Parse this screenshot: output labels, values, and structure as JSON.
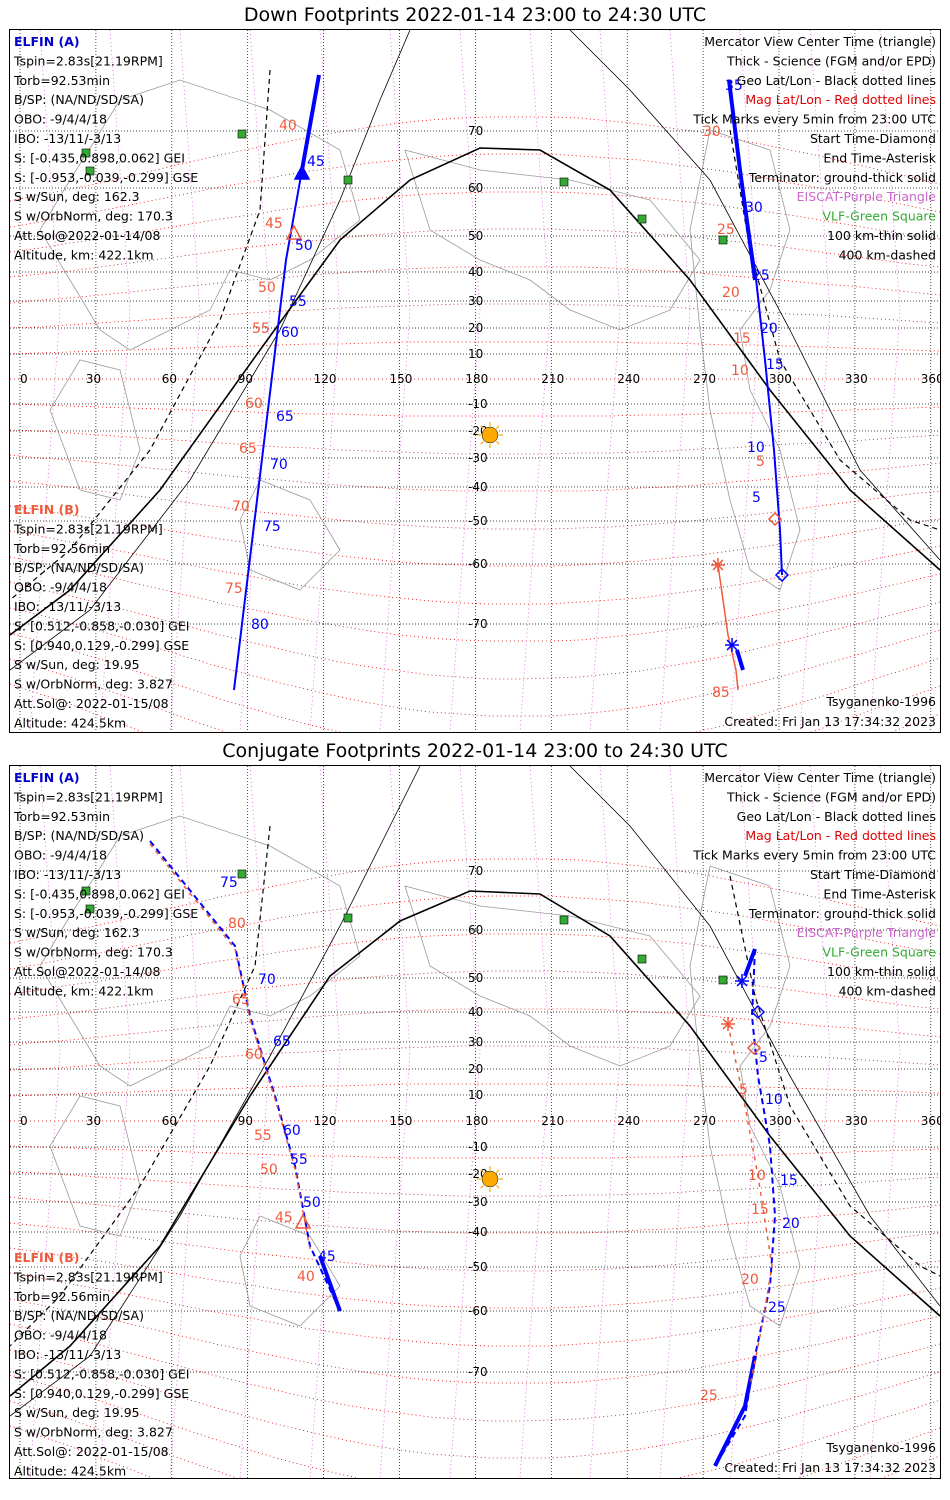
{
  "panels": [
    {
      "title": "Down Footprints 2022-01-14 23:00 to 24:30 UTC",
      "elfin_a": {
        "label": "ELFIN (A)",
        "lines": [
          "Tspin=2.83s[21.19RPM]",
          "Torb=92.53min",
          "B/SP: (NA/ND/SD/SA)",
          "OBO: -9/4/4/18",
          "IBO: -13/11/-3/13",
          "S: [-0.435,0.898,0.062] GEI",
          "S: [-0.953,-0.039,-0.299] GSE",
          "S w/Sun, deg: 162.3",
          "S w/OrbNorm, deg: 170.3",
          "Att.Sol@2022-01-14/08",
          "Altitude, km: 422.1km"
        ]
      },
      "elfin_b": {
        "label": "ELFIN (B)",
        "lines": [
          "Tspin=2.83s[21.19RPM]",
          "Torb=92.56min",
          "B/SP: (NA/ND/SD/SA)",
          "OBO: -9/4/4/18",
          "IBO: -13/11/-3/13",
          "S: [0.512,-0.858,-0.030] GEI",
          "S: [0.940,0.129,-0.299] GSE",
          "S w/Sun, deg: 19.95",
          "S w/OrbNorm, deg: 3.827",
          "Att.Sol@: 2022-01-15/08",
          "Altitude: 424.5km"
        ]
      },
      "legend": [
        {
          "text": "Mercator View Center Time (triangle)",
          "color": "#000000"
        },
        {
          "text": "Thick - Science (FGM and/or EPD)",
          "color": "#000000"
        },
        {
          "text": "Geo Lat/Lon - Black dotted lines",
          "color": "#000000"
        },
        {
          "text": "Mag Lat/Lon - Red dotted lines",
          "color": "#e00000"
        },
        {
          "text": "Tick Marks every 5min from 23:00 UTC",
          "color": "#000000"
        },
        {
          "text": "Start Time-Diamond",
          "color": "#000000"
        },
        {
          "text": "End Time-Asterisk",
          "color": "#000000"
        },
        {
          "text": "Terminator: ground-thick solid",
          "color": "#000000"
        },
        {
          "text": "EISCAT-Purple Triangle",
          "color": "#cc66cc"
        },
        {
          "text": "VLF-Green Square",
          "color": "#33aa33"
        },
        {
          "text": "100 km-thin solid",
          "color": "#000000"
        },
        {
          "text": "400 km-dashed",
          "color": "#000000"
        }
      ],
      "model": "Tsyganenko-1996",
      "created": "Created: Fri Jan 13 17:34:32 2023",
      "a_labels": [
        "35",
        "30",
        "25",
        "20",
        "15",
        "10",
        "5",
        "45",
        "50",
        "55",
        "60",
        "65",
        "70",
        "75",
        "80"
      ],
      "b_labels": [
        "30",
        "25",
        "20",
        "15",
        "10",
        "5",
        "40",
        "45",
        "50",
        "55",
        "60",
        "65",
        "70",
        "75",
        "85"
      ]
    },
    {
      "title": "Conjugate Footprints 2022-01-14 23:00 to 24:30 UTC",
      "elfin_a": {
        "label": "ELFIN (A)",
        "lines": [
          "Tspin=2.83s[21.19RPM]",
          "Torb=92.53min",
          "B/SP: (NA/ND/SD/SA)",
          "OBO: -9/4/4/18",
          "IBO: -13/11/-3/13",
          "S: [-0.435,0.898,0.062] GEI",
          "S: [-0.953,-0.039,-0.299] GSE",
          "S w/Sun, deg: 162.3",
          "S w/OrbNorm, deg: 170.3",
          "Att.Sol@2022-01-14/08",
          "Altitude, km: 422.1km"
        ]
      },
      "elfin_b": {
        "label": "ELFIN (B)",
        "lines": [
          "Tspin=2.83s[21.19RPM]",
          "Torb=92.56min",
          "B/SP: (NA/ND/SD/SA)",
          "OBO: -9/4/4/18",
          "IBO: -13/11/-3/13",
          "S: [0.512,-0.858,-0.030] GEI",
          "S: [0.940,0.129,-0.299] GSE",
          "S w/Sun, deg: 19.95",
          "S w/OrbNorm, deg: 3.827",
          "Att.Sol@: 2022-01-15/08",
          "Altitude: 424.5km"
        ]
      },
      "legend": [
        {
          "text": "Mercator View Center Time (triangle)",
          "color": "#000000"
        },
        {
          "text": "Thick - Science (FGM and/or EPD)",
          "color": "#000000"
        },
        {
          "text": "Geo Lat/Lon - Black dotted lines",
          "color": "#000000"
        },
        {
          "text": "Mag Lat/Lon - Red dotted lines",
          "color": "#e00000"
        },
        {
          "text": "Tick Marks every 5min from 23:00 UTC",
          "color": "#000000"
        },
        {
          "text": "Start Time-Diamond",
          "color": "#000000"
        },
        {
          "text": "End Time-Asterisk",
          "color": "#000000"
        },
        {
          "text": "Terminator: ground-thick solid",
          "color": "#000000"
        },
        {
          "text": "EISCAT-Purple Triangle",
          "color": "#cc66cc"
        },
        {
          "text": "VLF-Green Square",
          "color": "#33aa33"
        },
        {
          "text": "100 km-thin solid",
          "color": "#000000"
        },
        {
          "text": "400 km-dashed",
          "color": "#000000"
        }
      ],
      "model": "Tsyganenko-1996",
      "created": "Created: Fri Jan 13 17:34:32 2023",
      "a_labels": [
        "75",
        "70",
        "65",
        "60",
        "55",
        "50",
        "45",
        "5",
        "10",
        "15",
        "20",
        "25"
      ],
      "b_labels": [
        "80",
        "65",
        "60",
        "55",
        "50",
        "45",
        "40",
        "5",
        "10",
        "15",
        "20",
        "25"
      ]
    }
  ],
  "axes": {
    "lon_ticks": [
      "0",
      "30",
      "60",
      "90",
      "120",
      "150",
      "180",
      "210",
      "240",
      "270",
      "300",
      "330",
      "360"
    ],
    "lat_ticks": [
      "70",
      "60",
      "50",
      "40",
      "30",
      "20",
      "10",
      "-10",
      "-20",
      "-30",
      "-40",
      "-50",
      "-60",
      "-70"
    ]
  },
  "colors": {
    "elfin_a": "#0000ff",
    "elfin_b": "#f05a3c",
    "mag_grid": "#e00000",
    "geo_grid": "#000000",
    "eiscat": "#cc66cc",
    "vlf": "#33aa33",
    "sun": "#ffaa00"
  }
}
